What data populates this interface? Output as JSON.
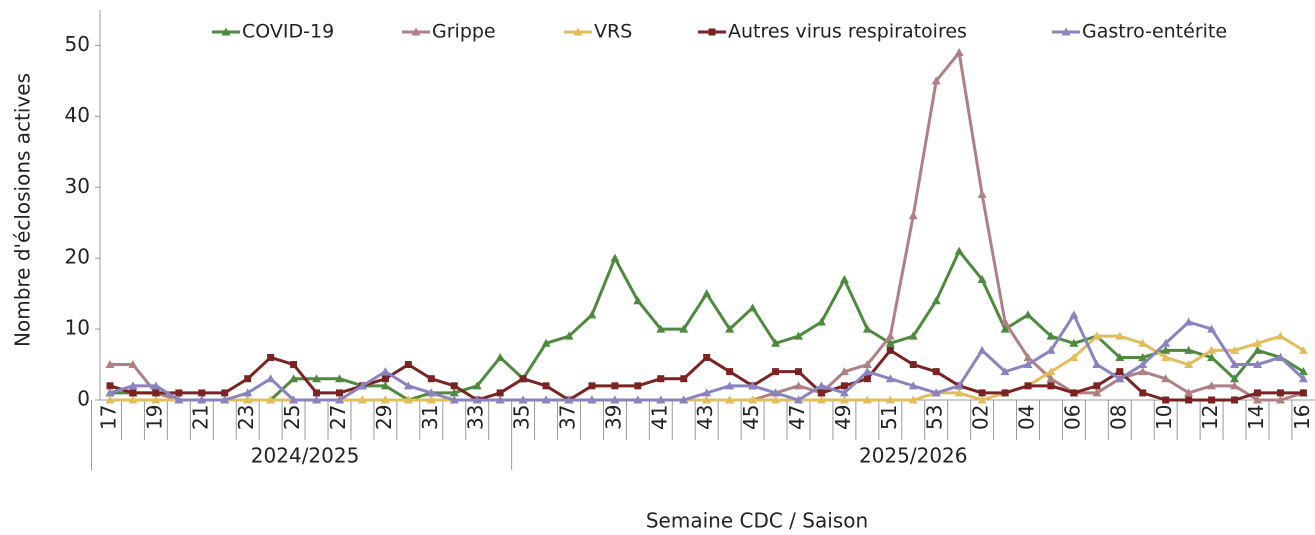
{
  "chart_data": {
    "type": "line",
    "y_axis_title": "Nombre d'éclosions actives",
    "x_axis_title": "Semaine CDC / Saison",
    "category_groups": [
      {
        "label": "2024/2025",
        "categories": [
          "17",
          null,
          "19",
          null,
          "21",
          null,
          "23",
          null,
          "25",
          null,
          "27",
          null,
          "29",
          null,
          "31",
          null,
          "33",
          null
        ]
      },
      {
        "label": "2025/2026",
        "categories": [
          "35",
          null,
          "37",
          null,
          "39",
          null,
          "41",
          null,
          "43",
          null,
          "45",
          null,
          "47",
          null,
          "49",
          null,
          "51",
          null,
          "53",
          null,
          "02",
          null,
          "04",
          null,
          "06",
          null,
          "08",
          null,
          "10",
          null,
          "12",
          null,
          "14",
          null,
          "16"
        ]
      }
    ],
    "ylim": [
      0,
      55
    ],
    "yticks": [
      0,
      10,
      20,
      30,
      40,
      50
    ],
    "series": [
      {
        "name": "COVID-19",
        "color": "#4e8a3e",
        "marker": "triangle",
        "values": [
          1,
          1,
          1,
          0,
          0,
          0,
          0,
          0,
          3,
          3,
          3,
          2,
          2,
          0,
          1,
          1,
          2,
          6,
          3,
          8,
          9,
          12,
          20,
          14,
          10,
          10,
          15,
          10,
          13,
          8,
          9,
          11,
          17,
          10,
          8,
          9,
          14,
          21,
          17,
          10,
          12,
          9,
          8,
          9,
          6,
          6,
          7,
          7,
          6,
          3,
          7,
          6,
          4
        ]
      },
      {
        "name": "Grippe",
        "color": "#b07f84",
        "marker": "triangle",
        "values": [
          5,
          5,
          1,
          0,
          0,
          0,
          0,
          0,
          0,
          0,
          0,
          0,
          0,
          0,
          0,
          0,
          0,
          0,
          0,
          0,
          0,
          0,
          0,
          0,
          0,
          0,
          0,
          0,
          0,
          1,
          2,
          1,
          4,
          5,
          9,
          26,
          45,
          49,
          29,
          11,
          6,
          3,
          1,
          1,
          3,
          4,
          3,
          1,
          2,
          2,
          0,
          0,
          1
        ]
      },
      {
        "name": "VRS",
        "color": "#e3bd5c",
        "marker": "triangle",
        "values": [
          0,
          0,
          0,
          0,
          0,
          0,
          0,
          0,
          0,
          0,
          0,
          0,
          0,
          0,
          0,
          0,
          0,
          0,
          0,
          0,
          0,
          0,
          0,
          0,
          0,
          0,
          0,
          0,
          0,
          0,
          0,
          0,
          0,
          0,
          0,
          0,
          1,
          1,
          0,
          1,
          2,
          4,
          6,
          9,
          9,
          8,
          6,
          5,
          7,
          7,
          8,
          9,
          7
        ]
      },
      {
        "name": "Autres virus respiratoires",
        "color": "#7b2323",
        "marker": "square",
        "values": [
          2,
          1,
          1,
          1,
          1,
          1,
          3,
          6,
          5,
          1,
          1,
          2,
          3,
          5,
          3,
          2,
          0,
          1,
          3,
          2,
          0,
          2,
          2,
          2,
          3,
          3,
          6,
          4,
          2,
          4,
          4,
          1,
          2,
          3,
          7,
          5,
          4,
          2,
          1,
          1,
          2,
          2,
          1,
          2,
          4,
          1,
          0,
          0,
          0,
          0,
          1,
          1,
          1
        ]
      },
      {
        "name": "Gastro-entérite",
        "color": "#8a83c0",
        "marker": "triangle",
        "values": [
          1,
          2,
          2,
          0,
          0,
          0,
          1,
          3,
          0,
          0,
          0,
          2,
          4,
          2,
          1,
          0,
          0,
          0,
          0,
          0,
          0,
          0,
          0,
          0,
          0,
          0,
          1,
          2,
          2,
          1,
          0,
          2,
          1,
          4,
          3,
          2,
          1,
          2,
          7,
          4,
          5,
          7,
          12,
          5,
          3,
          5,
          8,
          11,
          10,
          5,
          5,
          6,
          3
        ]
      }
    ]
  }
}
